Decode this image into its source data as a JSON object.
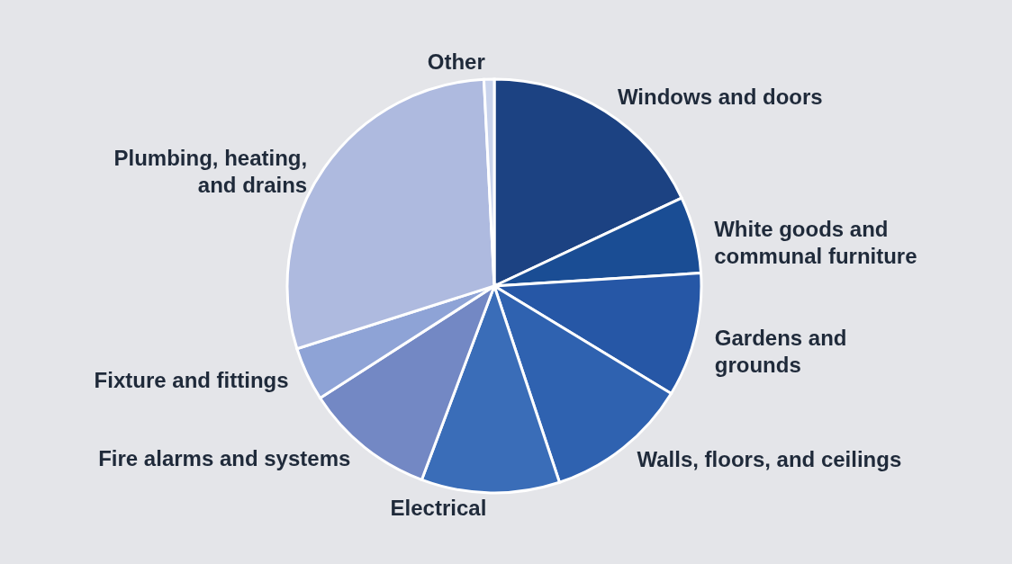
{
  "chart_data": {
    "type": "pie",
    "categories": [
      "Windows and doors",
      "White goods and communal furniture",
      "Gardens and grounds",
      "Walls, floors, and ceilings",
      "Electrical",
      "Fire alarms and systems",
      "Fixture and fittings",
      "Plumbing, heating, and drains",
      "Other"
    ],
    "values": [
      18,
      6,
      9.7,
      11.2,
      10.8,
      10.2,
      4.2,
      29.1,
      0.8
    ],
    "colors": [
      "#1c4282",
      "#1a4d94",
      "#2657a6",
      "#2f62b0",
      "#3a6db8",
      "#7388c4",
      "#8ea3d6",
      "#aebadf",
      "#c9d3ec"
    ]
  }
}
